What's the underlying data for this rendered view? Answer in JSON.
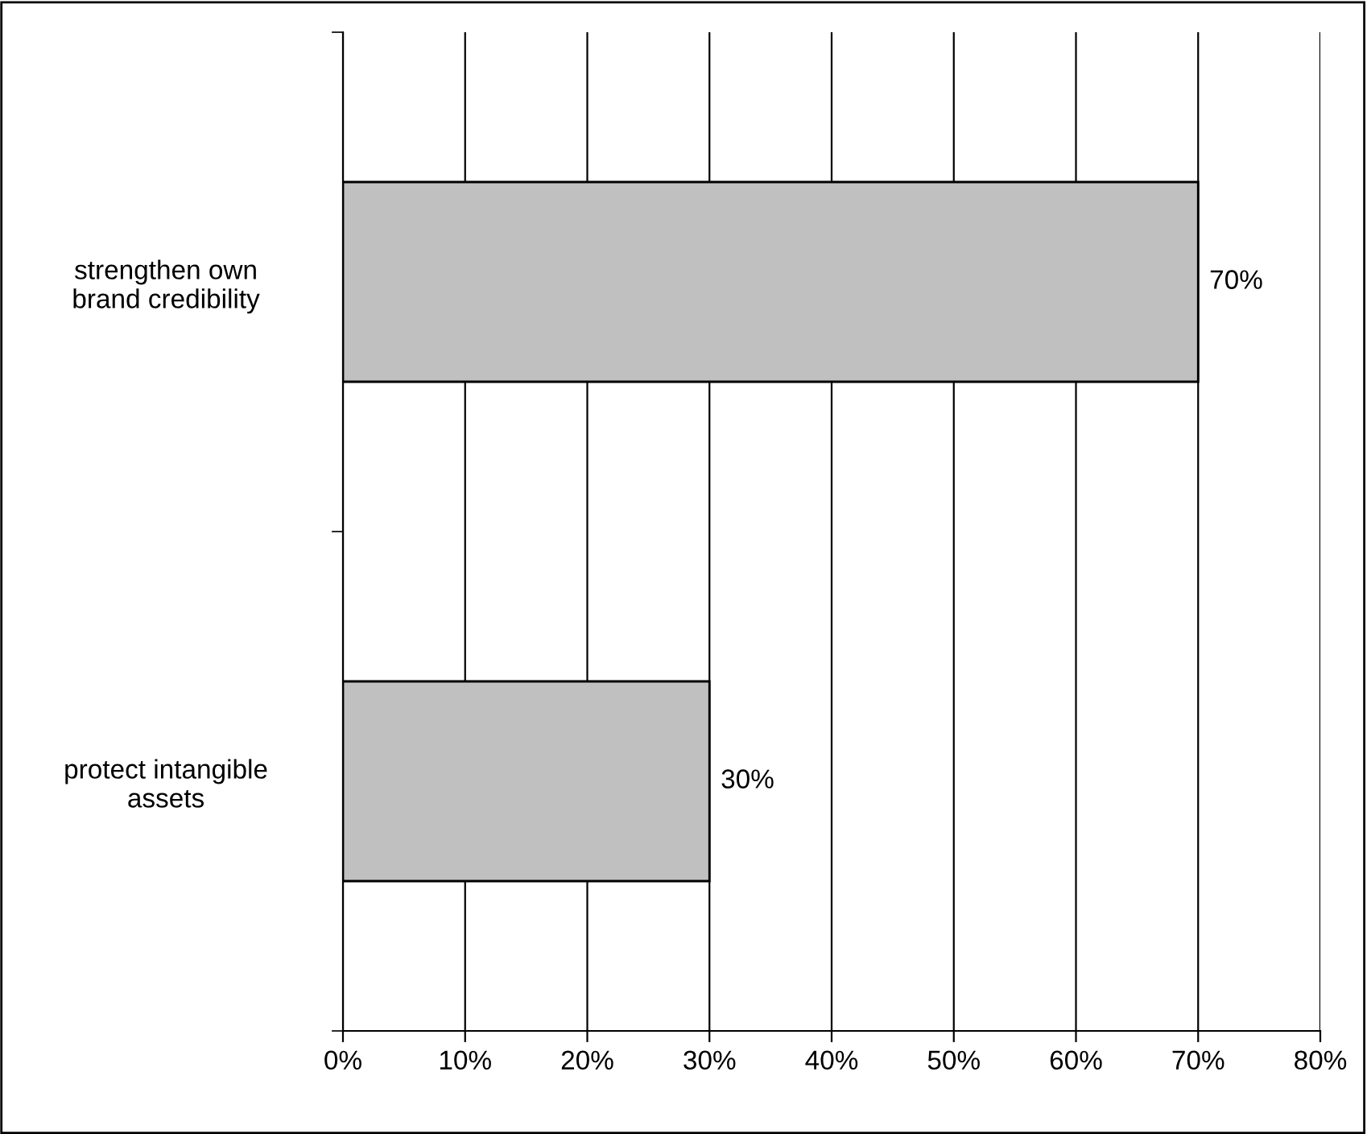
{
  "chart_data": {
    "type": "bar",
    "orientation": "horizontal",
    "categories": [
      "strengthen own\nbrand credibility",
      "protect intangible\nassets"
    ],
    "values": [
      70,
      30
    ],
    "value_labels": [
      "70%",
      "30%"
    ],
    "color": "#c0c0c0",
    "xlim": [
      0,
      80
    ],
    "xticks": [
      {
        "value": 0,
        "label": "0%"
      },
      {
        "value": 10,
        "label": "10%"
      },
      {
        "value": 20,
        "label": "20%"
      },
      {
        "value": 30,
        "label": "30%"
      },
      {
        "value": 40,
        "label": "40%"
      },
      {
        "value": 50,
        "label": "50%"
      },
      {
        "value": 60,
        "label": "60%"
      },
      {
        "value": 70,
        "label": "70%"
      },
      {
        "value": 80,
        "label": "80%"
      }
    ],
    "grid": "x"
  }
}
